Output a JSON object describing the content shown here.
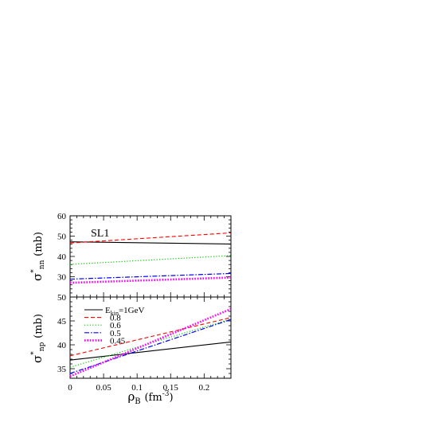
{
  "chart_data": [
    {
      "type": "line",
      "panel": "top",
      "annotation": "SL1",
      "ylabel": {
        "symbol": "σ",
        "sup": "*",
        "sub": "nn",
        "unit": "(mb)"
      },
      "xlim": [
        0,
        0.24
      ],
      "ylim": [
        20,
        60
      ],
      "y_ticks": [
        30,
        40,
        50,
        60
      ],
      "y_tick_labels": [
        "30",
        "40",
        "50",
        "60"
      ],
      "series": [
        {
          "name": "E_kin=1GeV",
          "color": "#000000",
          "dash": "solid",
          "x": [
            0,
            0.24
          ],
          "y": [
            47.2,
            46.1
          ]
        },
        {
          "name": "0.8",
          "color": "#ff0000",
          "dash": "dashed",
          "x": [
            0,
            0.24
          ],
          "y": [
            46.6,
            51.6
          ]
        },
        {
          "name": "0.6",
          "color": "#00cc00",
          "dash": "dotted",
          "x": [
            0,
            0.24
          ],
          "y": [
            36.1,
            40.4
          ]
        },
        {
          "name": "0.5",
          "color": "#0000ff",
          "dash": "dashdot",
          "x": [
            0,
            0.24
          ],
          "y": [
            28.8,
            31.6
          ]
        },
        {
          "name": "0.45",
          "color": "#ff00ff",
          "dash": "dense-dotted",
          "x": [
            0,
            0.24
          ],
          "y": [
            27.0,
            29.6
          ]
        }
      ]
    },
    {
      "type": "line",
      "panel": "bottom",
      "ylabel": {
        "symbol": "σ",
        "sup": "*",
        "sub": "np",
        "unit": "(mb)"
      },
      "xlabel": {
        "symbol": "ρ",
        "sub": "B",
        "unit_prefix": "(fm",
        "unit_sup": "-3",
        "unit_suffix": ")"
      },
      "xlim": [
        0,
        0.24
      ],
      "ylim": [
        33,
        50
      ],
      "x_ticks": [
        0,
        0.05,
        0.1,
        0.15,
        0.2
      ],
      "x_tick_labels": [
        "0",
        "0.05",
        "0.1",
        "0.15",
        "0.2"
      ],
      "y_ticks": [
        35,
        40,
        45,
        50
      ],
      "y_tick_labels": [
        "35",
        "40",
        "45",
        "50"
      ],
      "legend": {
        "placement": "top-left",
        "first_label": {
          "main": "E",
          "sub": "kin",
          "rest": "=1GeV"
        }
      },
      "series": [
        {
          "name": "E_kin=1GeV",
          "color": "#000000",
          "dash": "solid",
          "x": [
            0,
            0.24
          ],
          "y": [
            36.8,
            40.6
          ]
        },
        {
          "name": "0.8",
          "color": "#ff0000",
          "dash": "dashed",
          "x": [
            0,
            0.24
          ],
          "y": [
            37.7,
            45.7
          ]
        },
        {
          "name": "0.6",
          "color": "#00cc00",
          "dash": "dotted",
          "x": [
            0,
            0.24
          ],
          "y": [
            35.3,
            45.4
          ]
        },
        {
          "name": "0.5",
          "color": "#0000ff",
          "dash": "dashdot",
          "x": [
            0,
            0.24
          ],
          "y": [
            34.0,
            45.3
          ]
        },
        {
          "name": "0.45",
          "color": "#ff00ff",
          "dash": "dense-dotted",
          "x": [
            0,
            0.24
          ],
          "y": [
            33.4,
            47.5
          ]
        }
      ]
    }
  ]
}
